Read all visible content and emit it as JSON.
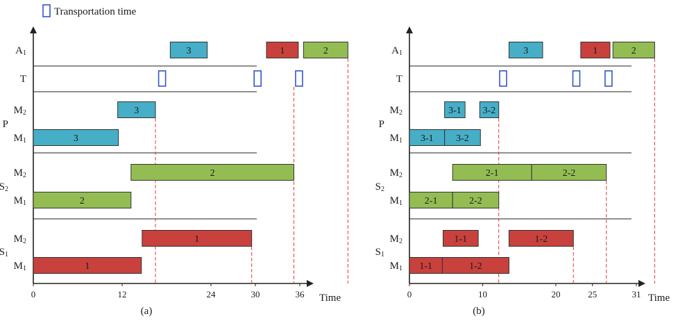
{
  "legend": {
    "label": "Transportation time",
    "color": "#3355cc"
  },
  "axis_label": "Time",
  "colors": {
    "S1": "#c8413d",
    "S2": "#93bd53",
    "P": "#46aec6",
    "T": "#3355cc",
    "dash": "#e53935"
  },
  "diagrams": [
    {
      "caption": "(a)",
      "scale_max": 36,
      "ticks": [
        {
          "value": 0,
          "label": "0"
        },
        {
          "value": 12,
          "label": "12"
        },
        {
          "value": 24,
          "label": "24"
        },
        {
          "value": 30,
          "label": "30"
        },
        {
          "value": 36,
          "label": "36"
        }
      ],
      "rows": [
        {
          "key": "A1",
          "main": "A",
          "sub": "1"
        },
        {
          "key": "T",
          "main": "T",
          "sub": ""
        },
        {
          "key": "P-M2",
          "main": "M",
          "sub": "2"
        },
        {
          "key": "P-M1",
          "main": "M",
          "sub": "1"
        },
        {
          "key": "S2-M2",
          "main": "M",
          "sub": "2"
        },
        {
          "key": "S2-M1",
          "main": "M",
          "sub": "1"
        },
        {
          "key": "S1-M2",
          "main": "M",
          "sub": "2"
        },
        {
          "key": "S1-M1",
          "main": "M",
          "sub": "1"
        }
      ],
      "groups": [
        {
          "main": "P",
          "sub": ""
        },
        {
          "main": "S",
          "sub": "2"
        },
        {
          "main": "S",
          "sub": "1"
        }
      ],
      "bars": [
        {
          "row": "A1",
          "start": 18.5,
          "end": 23.5,
          "label": "3",
          "color_key": "P"
        },
        {
          "row": "A1",
          "start": 31.5,
          "end": 35.8,
          "label": "1",
          "color_key": "S1"
        },
        {
          "row": "A1",
          "start": 36.5,
          "end": 42.5,
          "label": "2",
          "color_key": "S2"
        },
        {
          "row": "P-M2",
          "start": 11.4,
          "end": 16.5,
          "label": "3",
          "color_key": "P"
        },
        {
          "row": "P-M1",
          "start": 0,
          "end": 11.5,
          "label": "3",
          "color_key": "P"
        },
        {
          "row": "S2-M2",
          "start": 13.2,
          "end": 35.2,
          "label": "2",
          "color_key": "S2"
        },
        {
          "row": "S2-M1",
          "start": 0,
          "end": 13.2,
          "label": "2",
          "color_key": "S2"
        },
        {
          "row": "S1-M2",
          "start": 14.7,
          "end": 29.5,
          "label": "1",
          "color_key": "S1"
        },
        {
          "row": "S1-M1",
          "start": 0,
          "end": 14.6,
          "label": "1",
          "color_key": "S1"
        }
      ],
      "transport": [
        17.4,
        30.3,
        35.9
      ],
      "dashes": [
        {
          "value": 16.5,
          "from": "P-M2"
        },
        {
          "value": 29.5,
          "from": "S1-M2"
        },
        {
          "value": 35.2,
          "from": "T"
        },
        {
          "value": 42.5,
          "from": "A1"
        }
      ]
    },
    {
      "caption": "(b)",
      "scale_max": 31,
      "ticks": [
        {
          "value": 0,
          "label": "0"
        },
        {
          "value": 10,
          "label": "10"
        },
        {
          "value": 20,
          "label": "20"
        },
        {
          "value": 25,
          "label": "25"
        },
        {
          "value": 31,
          "label": "31"
        }
      ],
      "rows": [
        {
          "key": "A1",
          "main": "A",
          "sub": "1"
        },
        {
          "key": "T",
          "main": "T",
          "sub": ""
        },
        {
          "key": "P-M2",
          "main": "M",
          "sub": "2"
        },
        {
          "key": "P-M1",
          "main": "M",
          "sub": "1"
        },
        {
          "key": "S2-M2",
          "main": "M",
          "sub": "2"
        },
        {
          "key": "S2-M1",
          "main": "M",
          "sub": "1"
        },
        {
          "key": "S1-M2",
          "main": "M",
          "sub": "2"
        },
        {
          "key": "S1-M1",
          "main": "M",
          "sub": "1"
        }
      ],
      "groups": [
        {
          "main": "P",
          "sub": ""
        },
        {
          "main": "S",
          "sub": "2"
        },
        {
          "main": "S",
          "sub": "1"
        }
      ],
      "bars": [
        {
          "row": "A1",
          "start": 13.6,
          "end": 18.2,
          "label": "3",
          "color_key": "P"
        },
        {
          "row": "A1",
          "start": 23.4,
          "end": 27.4,
          "label": "1",
          "color_key": "S1"
        },
        {
          "row": "A1",
          "start": 27.8,
          "end": 33.5,
          "label": "2",
          "color_key": "S2"
        },
        {
          "row": "P-M2",
          "start": 4.8,
          "end": 7.6,
          "label": "3-1",
          "color_key": "P"
        },
        {
          "row": "P-M2",
          "start": 9.6,
          "end": 12.2,
          "label": "3-2",
          "color_key": "P"
        },
        {
          "row": "P-M1",
          "start": 0,
          "end": 4.8,
          "label": "3-1",
          "color_key": "P"
        },
        {
          "row": "P-M1",
          "start": 4.8,
          "end": 9.7,
          "label": "3-2",
          "color_key": "P"
        },
        {
          "row": "S2-M2",
          "start": 5.9,
          "end": 16.7,
          "label": "2-1",
          "color_key": "S2"
        },
        {
          "row": "S2-M2",
          "start": 16.7,
          "end": 26.9,
          "label": "2-2",
          "color_key": "S2"
        },
        {
          "row": "S2-M1",
          "start": 0,
          "end": 5.9,
          "label": "2-1",
          "color_key": "S2"
        },
        {
          "row": "S2-M1",
          "start": 5.9,
          "end": 12.2,
          "label": "2-2",
          "color_key": "S2"
        },
        {
          "row": "S1-M2",
          "start": 4.6,
          "end": 9.4,
          "label": "1-1",
          "color_key": "S1"
        },
        {
          "row": "S1-M2",
          "start": 13.6,
          "end": 22.4,
          "label": "1-2",
          "color_key": "S1"
        },
        {
          "row": "S1-M1",
          "start": 0,
          "end": 4.5,
          "label": "1-1",
          "color_key": "S1"
        },
        {
          "row": "S1-M1",
          "start": 4.5,
          "end": 13.6,
          "label": "1-2",
          "color_key": "S1"
        }
      ],
      "transport": [
        12.8,
        22.8,
        27.2
      ],
      "dashes": [
        {
          "value": 12.2,
          "from": "P-M2"
        },
        {
          "value": 22.4,
          "from": "S1-M2"
        },
        {
          "value": 26.9,
          "from": "S2-M2"
        },
        {
          "value": 33.5,
          "from": "A1"
        }
      ]
    }
  ]
}
